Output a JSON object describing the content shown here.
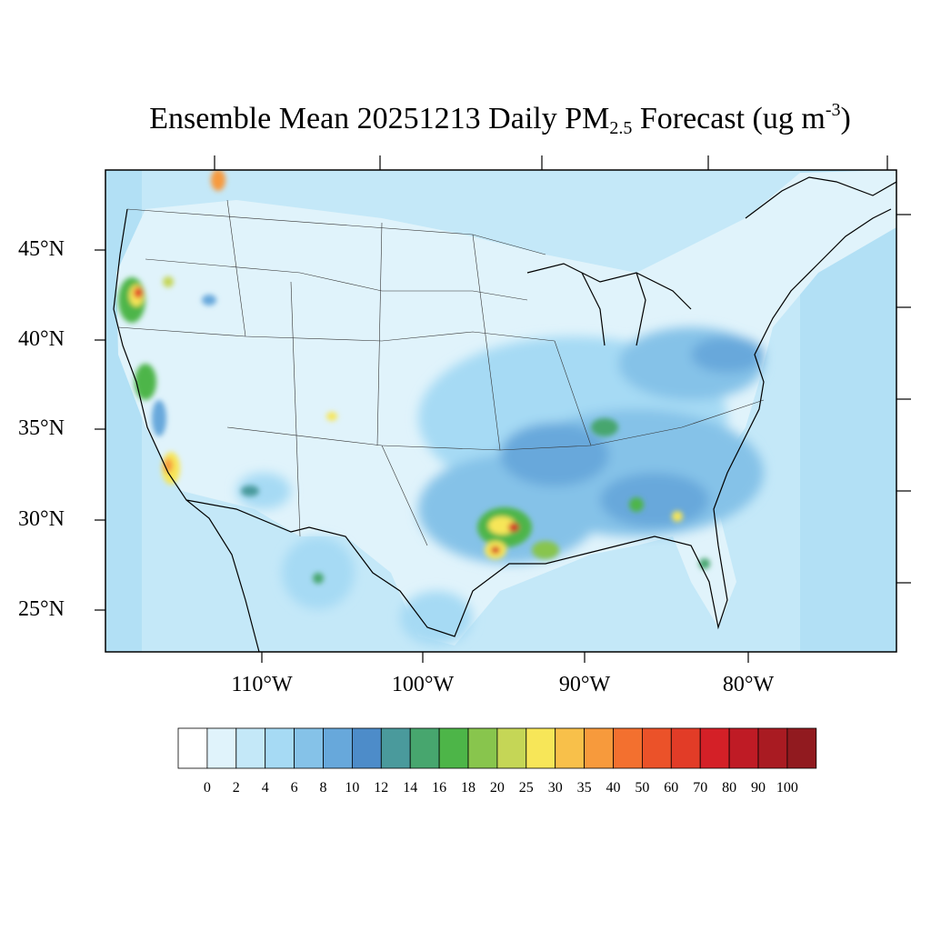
{
  "title": {
    "prefix": "Ensemble Mean 20251213 Daily PM",
    "subscript": "2.5",
    "middle": " Forecast (ug m",
    "superscript": "-3",
    "suffix": ")"
  },
  "map": {
    "region": "CONUS",
    "lat_ticks": [
      {
        "label": "45°N",
        "value": 45
      },
      {
        "label": "40°N",
        "value": 40
      },
      {
        "label": "35°N",
        "value": 35
      },
      {
        "label": "30°N",
        "value": 30
      },
      {
        "label": "25°N",
        "value": 25
      }
    ],
    "lon_ticks": [
      {
        "label": "110°W",
        "value": -110
      },
      {
        "label": "100°W",
        "value": -100
      },
      {
        "label": "90°W",
        "value": -90
      },
      {
        "label": "80°W",
        "value": -80
      }
    ]
  },
  "colorbar": {
    "levels": [
      "0",
      "2",
      "4",
      "6",
      "8",
      "10",
      "12",
      "14",
      "16",
      "18",
      "20",
      "25",
      "30",
      "35",
      "40",
      "50",
      "60",
      "70",
      "80",
      "90",
      "100"
    ],
    "colors": [
      "#ffffff",
      "#e0f3fb",
      "#c4e8f8",
      "#a6daf4",
      "#85c2e8",
      "#67a8db",
      "#4d8cc9",
      "#4a9a9c",
      "#47a66e",
      "#4db548",
      "#88c54d",
      "#c5d656",
      "#f7e658",
      "#f8c04a",
      "#f79a3c",
      "#f3702f",
      "#eb5229",
      "#e23c27",
      "#d42027",
      "#bf1b25",
      "#a91b22",
      "#911a1f"
    ]
  }
}
